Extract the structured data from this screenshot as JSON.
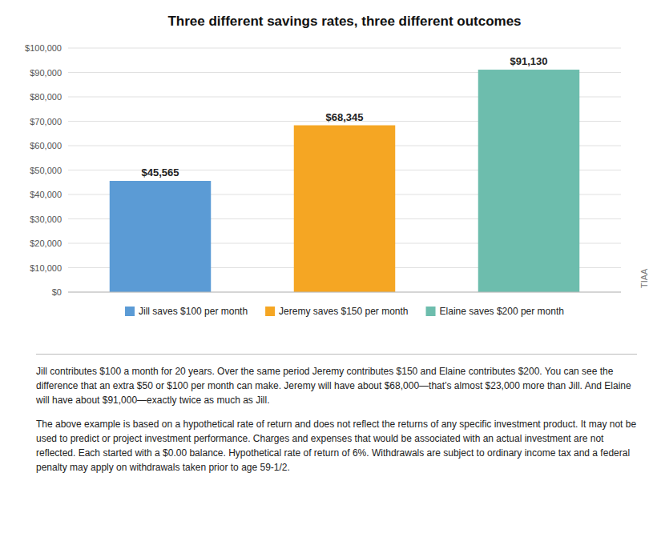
{
  "chart_data": {
    "type": "bar",
    "title": "Three different savings rates, three different outcomes",
    "categories": [
      "Jill saves $100 per month",
      "Jeremy saves $150 per month",
      "Elaine saves $200 per month"
    ],
    "values": [
      45565,
      68345,
      91130
    ],
    "value_labels": [
      "$45,565",
      "$68,345",
      "$91,130"
    ],
    "data_labels": true,
    "colors": [
      "#5b9bd5",
      "#f5a623",
      "#6dbdad"
    ],
    "ylim": [
      0,
      100000
    ],
    "yticks": [
      {
        "value": 0,
        "label": "$0"
      },
      {
        "value": 10000,
        "label": "$10,000"
      },
      {
        "value": 20000,
        "label": "$20,000"
      },
      {
        "value": 30000,
        "label": "$30,000"
      },
      {
        "value": 40000,
        "label": "$40,000"
      },
      {
        "value": 50000,
        "label": "$50,000"
      },
      {
        "value": 60000,
        "label": "$60,000"
      },
      {
        "value": 70000,
        "label": "$70,000"
      },
      {
        "value": 80000,
        "label": "$80,000"
      },
      {
        "value": 90000,
        "label": "$90,000"
      },
      {
        "value": 100000,
        "label": "$100,000"
      }
    ],
    "grid": true,
    "tick_labels": "y",
    "legend": "bottom",
    "annotations": [
      "TIAA",
      "Jill contributes $100 a month for 20 years. Over the same period Jeremy contributes $150 and Elaine contributes $200. You can see the difference that an extra $50 or $100 per month can make. Jeremy will have about $68,000—that’s almost $23,000 more than Jill. And Elaine will have about $91,000—exactly twice as much as Jill.",
      "The above example is based on a hypothetical rate of return and does not reflect the returns of any specific investment product. It may not be used to predict or project investment performance. Charges and expenses that would be associated with an actual investment are not reflected. Each started with a $0.00 balance. Hypothetical rate of return of 6%. Withdrawals are subject to ordinary income tax and a federal penalty may apply on withdrawals taken prior to age 59-1/2."
    ]
  }
}
